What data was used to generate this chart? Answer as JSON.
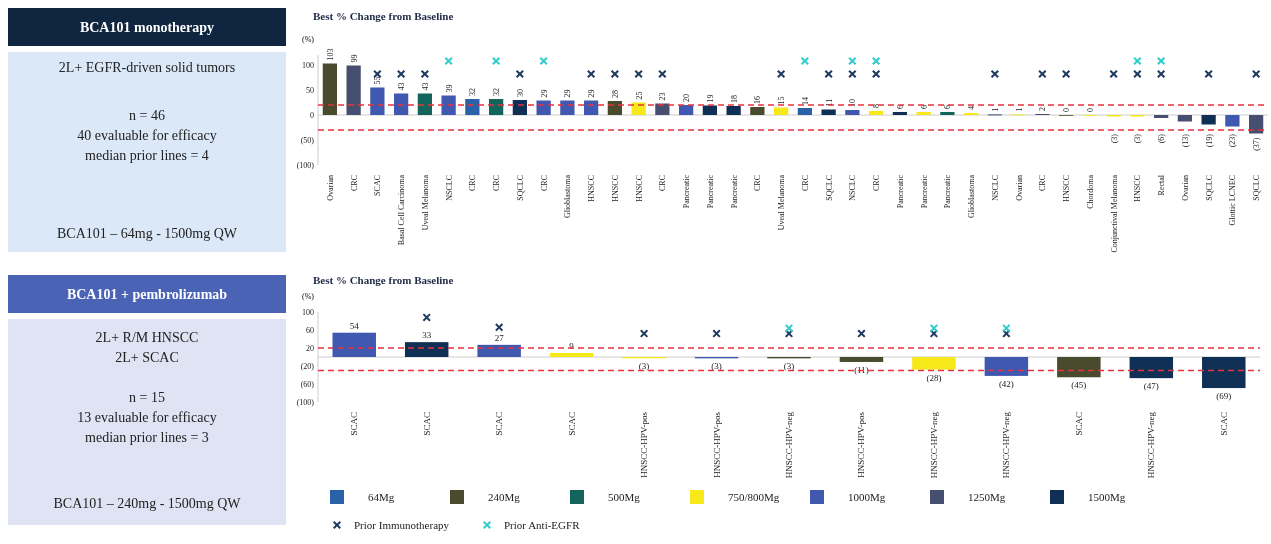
{
  "chart_data": [
    {
      "type": "other",
      "title": "BCA101 monotherapy",
      "color": "#0f2540",
      "annotations": [
        "2L+ EGFR-driven solid tumors",
        "n = 46",
        "40 evaluable for efficacy",
        "median prior lines = 4",
        "BCA101 – 64mg - 1500mg QW"
      ]
    },
    {
      "type": "bar",
      "title": "Best % Change from Baseline",
      "ylabel": "(%)",
      "marker": "cross",
      "categories": [
        "Ovarian",
        "CRC",
        "SCAC",
        "Basal Cell Carcinoma",
        "Uveal Melanoma",
        "NSCLC",
        "CRC",
        "CRC",
        "SQCLC",
        "CRC",
        "Glioblastoma",
        "HNSCC",
        "HNSCC",
        "HNSCC",
        "CRC",
        "Pancreatic",
        "Pancreatic",
        "Pancreatic",
        "CRC",
        "Uveal Melanoma",
        "CRC",
        "SQCLC",
        "NSCLC",
        "CRC",
        "Pancreatic",
        "Pancreatic",
        "Pancreatic",
        "Glioblastoma",
        "NSCLC",
        "Ovarian",
        "CRC",
        "HNSCC",
        "Chordoma",
        "Conjunctival Melanoma",
        "HNSCC",
        "Rectal",
        "Ovarian",
        "SQCLC",
        "Glottic LCNEC",
        "SQCLC"
      ],
      "ylim": [
        -100,
        120
      ],
      "yticks": [
        {
          "value": -100,
          "label": "(100)"
        },
        {
          "value": -50,
          "label": "(50)"
        },
        0,
        50,
        100
      ],
      "ref_lines": [
        {
          "axis": "y",
          "value": 20,
          "color": "#e8323c",
          "line_style": "dashed"
        },
        {
          "axis": "y",
          "value": -30,
          "color": "#e8323c",
          "line_style": "dashed"
        }
      ],
      "series": [
        {
          "color": "#2a62a8",
          "values": [
            null,
            null,
            null,
            null,
            null,
            null,
            32,
            null,
            null,
            null,
            null,
            null,
            null,
            null,
            null,
            null,
            null,
            null,
            null,
            null,
            14,
            null,
            null,
            null,
            null,
            null,
            null,
            null,
            null,
            null,
            null,
            null,
            null,
            null,
            null,
            null,
            null,
            null,
            null,
            null
          ],
          "value_labels": [
            null,
            null,
            null,
            null,
            null,
            null,
            "32",
            null,
            null,
            null,
            null,
            null,
            null,
            null,
            null,
            null,
            null,
            null,
            null,
            null,
            "14",
            null,
            null,
            null,
            null,
            null,
            null,
            null,
            null,
            null,
            null,
            null,
            null,
            null,
            null,
            null,
            null,
            null,
            null,
            null
          ]
        },
        {
          "color": "#4a4a2e",
          "values": [
            103,
            null,
            null,
            null,
            null,
            null,
            null,
            null,
            null,
            null,
            null,
            null,
            28,
            null,
            null,
            null,
            null,
            null,
            16,
            null,
            null,
            null,
            null,
            null,
            null,
            null,
            null,
            null,
            null,
            null,
            null,
            0,
            null,
            null,
            null,
            null,
            null,
            null,
            null,
            null
          ],
          "value_labels": [
            "103",
            null,
            null,
            null,
            null,
            null,
            null,
            null,
            null,
            null,
            null,
            null,
            "28",
            null,
            null,
            null,
            null,
            null,
            "16",
            null,
            null,
            null,
            null,
            null,
            null,
            null,
            null,
            null,
            null,
            null,
            null,
            "0",
            null,
            null,
            null,
            null,
            null,
            null,
            null,
            null
          ]
        },
        {
          "color": "#13645a",
          "values": [
            null,
            null,
            null,
            null,
            43,
            null,
            null,
            32,
            null,
            null,
            null,
            null,
            null,
            null,
            null,
            null,
            null,
            null,
            null,
            null,
            null,
            null,
            null,
            null,
            null,
            null,
            6,
            null,
            null,
            null,
            null,
            null,
            null,
            null,
            null,
            null,
            null,
            null,
            null,
            null
          ],
          "value_labels": [
            null,
            null,
            null,
            null,
            "43",
            null,
            null,
            "32",
            null,
            null,
            null,
            null,
            null,
            null,
            null,
            null,
            null,
            null,
            null,
            null,
            null,
            null,
            null,
            null,
            null,
            null,
            "6",
            null,
            null,
            null,
            null,
            null,
            null,
            null,
            null,
            null,
            null,
            null,
            null,
            null
          ]
        },
        {
          "color": "#f7e81a",
          "values": [
            null,
            null,
            null,
            null,
            null,
            null,
            null,
            null,
            null,
            null,
            null,
            null,
            null,
            25,
            null,
            null,
            null,
            null,
            null,
            15,
            null,
            null,
            null,
            8,
            null,
            6,
            null,
            4,
            null,
            1,
            null,
            null,
            0,
            -3,
            -3,
            null,
            null,
            null,
            null,
            null
          ],
          "value_labels": [
            null,
            null,
            null,
            null,
            null,
            null,
            null,
            null,
            null,
            null,
            null,
            null,
            null,
            "25",
            null,
            null,
            null,
            null,
            null,
            "15",
            null,
            null,
            null,
            "8",
            null,
            "6",
            null,
            "4",
            null,
            "1",
            null,
            null,
            "0",
            "(3)",
            "(3)",
            null,
            null,
            null,
            null,
            null
          ]
        },
        {
          "color": "#4058b0",
          "values": [
            null,
            null,
            55,
            43,
            null,
            39,
            null,
            null,
            null,
            29,
            29,
            29,
            null,
            null,
            null,
            20,
            null,
            null,
            null,
            null,
            null,
            null,
            10,
            null,
            null,
            null,
            null,
            null,
            null,
            null,
            null,
            null,
            null,
            null,
            null,
            null,
            null,
            null,
            -23,
            null
          ],
          "value_labels": [
            null,
            null,
            "55",
            "43",
            null,
            "39",
            null,
            null,
            null,
            "29",
            "29",
            "29",
            null,
            null,
            null,
            "20",
            null,
            null,
            null,
            null,
            null,
            null,
            "10",
            null,
            null,
            null,
            null,
            null,
            null,
            null,
            null,
            null,
            null,
            null,
            null,
            null,
            null,
            null,
            "(23)",
            null
          ]
        },
        {
          "color": "#464f70",
          "values": [
            null,
            99,
            null,
            null,
            null,
            null,
            null,
            null,
            null,
            null,
            null,
            null,
            null,
            null,
            23,
            null,
            null,
            null,
            null,
            null,
            null,
            null,
            null,
            null,
            null,
            null,
            null,
            null,
            null,
            null,
            2,
            null,
            null,
            null,
            null,
            -6,
            -13,
            null,
            null,
            -37
          ],
          "value_labels": [
            null,
            "99",
            null,
            null,
            null,
            null,
            null,
            null,
            null,
            null,
            null,
            null,
            null,
            null,
            "23",
            null,
            null,
            null,
            null,
            null,
            null,
            null,
            null,
            null,
            null,
            null,
            null,
            null,
            null,
            null,
            "2",
            null,
            null,
            null,
            null,
            "(6)",
            "(13)",
            null,
            null,
            "(37)"
          ]
        },
        {
          "color": "#0f2f55",
          "values": [
            null,
            null,
            null,
            null,
            null,
            null,
            null,
            null,
            30,
            null,
            null,
            null,
            null,
            null,
            null,
            null,
            19,
            18,
            null,
            null,
            null,
            11,
            null,
            null,
            6,
            null,
            null,
            null,
            1,
            null,
            null,
            null,
            null,
            null,
            null,
            null,
            null,
            -19,
            null,
            null
          ],
          "value_labels": [
            null,
            null,
            null,
            null,
            null,
            null,
            null,
            null,
            "30",
            null,
            null,
            null,
            null,
            null,
            null,
            null,
            "19",
            "18",
            null,
            null,
            null,
            "11",
            null,
            null,
            "6",
            null,
            null,
            null,
            "1",
            null,
            null,
            null,
            null,
            null,
            null,
            null,
            null,
            "(19)",
            null,
            null
          ]
        },
        {
          "type": "scatter",
          "color": "#1e3a5f",
          "values": [
            null,
            null,
            82,
            82,
            82,
            null,
            null,
            null,
            82,
            null,
            null,
            82,
            82,
            82,
            82,
            null,
            null,
            null,
            null,
            82,
            null,
            82,
            82,
            82,
            null,
            null,
            null,
            null,
            82,
            null,
            82,
            82,
            null,
            82,
            82,
            82,
            null,
            82,
            null,
            82
          ]
        },
        {
          "type": "scatter",
          "color": "#33cccc",
          "values": [
            null,
            null,
            null,
            null,
            null,
            108,
            null,
            108,
            null,
            108,
            null,
            null,
            null,
            null,
            null,
            null,
            null,
            null,
            null,
            null,
            108,
            null,
            108,
            108,
            null,
            null,
            null,
            null,
            null,
            null,
            null,
            null,
            null,
            null,
            108,
            108,
            null,
            null,
            null,
            null
          ]
        }
      ]
    },
    {
      "type": "other",
      "title": "BCA101 + pembrolizumab",
      "color": "#4a63b4",
      "annotations": [
        "2L+ R/M HNSCC",
        "2L+ SCAC",
        "n = 15",
        "13 evaluable for efficacy",
        "median prior lines = 3",
        "BCA101  – 240mg  - 1500mg QW"
      ]
    },
    {
      "type": "bar",
      "title": "Best % Change from Baseline",
      "ylabel": "(%)",
      "legend": "bottom",
      "marker": "cross",
      "categories": [
        "SCAC",
        "SCAC",
        "SCAC",
        "SCAC",
        "HNSCC-HPV-pos",
        "HNSCC-HPV-pos",
        "HNSCC-HPV-neg",
        "HNSCC-HPV-pos",
        "HNSCC-HPV-neg",
        "HNSCC-HPV-neg",
        "SCAC",
        "HNSCC-HPV-neg",
        "SCAC"
      ],
      "ylim": [
        -100,
        100
      ],
      "yticks": [
        {
          "value": -100,
          "label": "(100)"
        },
        {
          "value": -60,
          "label": "(60)"
        },
        {
          "value": -20,
          "label": "(20)"
        },
        20,
        60,
        100
      ],
      "ref_lines": [
        {
          "axis": "y",
          "value": 20,
          "color": "#e8323c",
          "line_style": "dashed"
        },
        {
          "axis": "y",
          "value": -30,
          "color": "#e8323c",
          "line_style": "dashed"
        }
      ],
      "series": [
        {
          "name": "64Mg",
          "color": "#2a62a8",
          "values": [
            null,
            null,
            null,
            null,
            null,
            null,
            null,
            null,
            null,
            null,
            null,
            null,
            null
          ]
        },
        {
          "name": "240Mg",
          "color": "#4a4a2e",
          "values": [
            null,
            null,
            null,
            null,
            null,
            null,
            -3,
            -11,
            null,
            null,
            -45,
            null,
            null
          ],
          "value_labels": [
            null,
            null,
            null,
            null,
            null,
            null,
            "(3)",
            "(11)",
            null,
            null,
            "(45)",
            null,
            null
          ]
        },
        {
          "name": "500Mg",
          "color": "#13645a",
          "values": [
            null,
            null,
            null,
            null,
            null,
            null,
            null,
            null,
            null,
            null,
            null,
            null,
            null
          ]
        },
        {
          "name": "750/800Mg",
          "color": "#f7e81a",
          "values": [
            null,
            null,
            null,
            9,
            -3,
            null,
            null,
            null,
            -28,
            null,
            null,
            null,
            null
          ],
          "value_labels": [
            null,
            null,
            null,
            "9",
            "(3)",
            null,
            null,
            null,
            "(28)",
            null,
            null,
            null,
            null
          ]
        },
        {
          "name": "1000Mg",
          "color": "#4058b0",
          "values": [
            54,
            null,
            27,
            null,
            null,
            -3,
            null,
            null,
            null,
            -42,
            null,
            null,
            null
          ],
          "value_labels": [
            "54",
            null,
            "27",
            null,
            null,
            "(3)",
            null,
            null,
            null,
            "(42)",
            null,
            null,
            null
          ]
        },
        {
          "name": "1250Mg",
          "color": "#464f70",
          "values": [
            null,
            null,
            null,
            null,
            null,
            null,
            null,
            null,
            null,
            null,
            null,
            null,
            null
          ]
        },
        {
          "name": "1500Mg",
          "color": "#0f2f55",
          "values": [
            null,
            33,
            null,
            null,
            null,
            null,
            null,
            null,
            null,
            null,
            null,
            -47,
            -69
          ],
          "value_labels": [
            null,
            "33",
            null,
            null,
            null,
            null,
            null,
            null,
            null,
            null,
            null,
            "(47)",
            "(69)"
          ]
        },
        {
          "name": "Prior Immunotherapy",
          "type": "scatter",
          "color": "#1e3a5f",
          "values": [
            null,
            88,
            66,
            null,
            52,
            52,
            52,
            52,
            52,
            52,
            null,
            null,
            null
          ]
        },
        {
          "name": "Prior Anti-EGFR",
          "type": "scatter",
          "color": "#33cccc",
          "values": [
            null,
            null,
            null,
            null,
            null,
            null,
            64,
            null,
            64,
            64,
            null,
            null,
            null
          ]
        }
      ]
    }
  ]
}
